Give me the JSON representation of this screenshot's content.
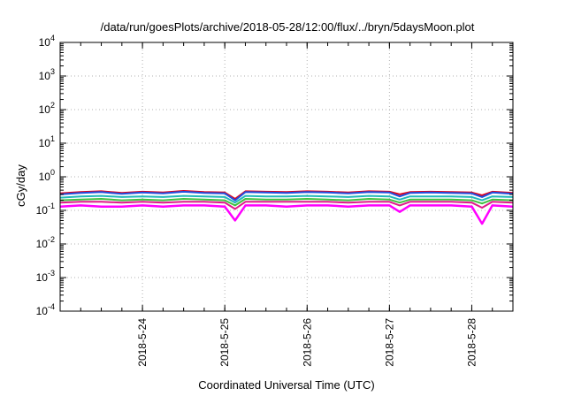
{
  "chart_data": {
    "type": "line",
    "title": "/data/run/goesPlots/archive/2018-05-28/12:00/flux/../bryn/5daysMoon.plot",
    "xlabel": "Coordinated Universal Time (UTC)",
    "ylabel": "cGy/day",
    "yscale": "log",
    "ylim": [
      0.0001,
      10000
    ],
    "y_ticks": [
      {
        "base": "10",
        "exp": "-4",
        "value": 0.0001
      },
      {
        "base": "10",
        "exp": "-3",
        "value": 0.001
      },
      {
        "base": "10",
        "exp": "-2",
        "value": 0.01
      },
      {
        "base": "10",
        "exp": "-1",
        "value": 0.1
      },
      {
        "base": "10",
        "exp": "0",
        "value": 1
      },
      {
        "base": "10",
        "exp": "1",
        "value": 10
      },
      {
        "base": "10",
        "exp": "2",
        "value": 100
      },
      {
        "base": "10",
        "exp": "3",
        "value": 1000
      },
      {
        "base": "10",
        "exp": "4",
        "value": 10000
      }
    ],
    "xlim": [
      "2018-05-23 00:00",
      "2018-05-28 12:00"
    ],
    "x_ticks": [
      {
        "label": "2018-5-24",
        "value": "2018-05-24 00:00"
      },
      {
        "label": "2018-5-25",
        "value": "2018-05-25 00:00"
      },
      {
        "label": "2018-5-26",
        "value": "2018-05-26 00:00"
      },
      {
        "label": "2018-5-27",
        "value": "2018-05-27 00:00"
      },
      {
        "label": "2018-5-28",
        "value": "2018-05-28 00:00"
      }
    ],
    "grid": true,
    "x": [
      "2018-05-23 00:00",
      "2018-05-23 06:00",
      "2018-05-23 12:00",
      "2018-05-23 18:00",
      "2018-05-24 00:00",
      "2018-05-24 06:00",
      "2018-05-24 12:00",
      "2018-05-24 18:00",
      "2018-05-25 00:00",
      "2018-05-25 03:00",
      "2018-05-25 06:00",
      "2018-05-25 12:00",
      "2018-05-25 18:00",
      "2018-05-26 00:00",
      "2018-05-26 06:00",
      "2018-05-26 12:00",
      "2018-05-26 18:00",
      "2018-05-27 00:00",
      "2018-05-27 03:00",
      "2018-05-27 06:00",
      "2018-05-27 12:00",
      "2018-05-27 18:00",
      "2018-05-28 00:00",
      "2018-05-28 03:00",
      "2018-05-28 06:00",
      "2018-05-28 12:00"
    ],
    "series": [
      {
        "color": "#e0001a",
        "values": [
          0.32,
          0.35,
          0.37,
          0.33,
          0.36,
          0.34,
          0.38,
          0.35,
          0.34,
          0.22,
          0.37,
          0.36,
          0.35,
          0.37,
          0.36,
          0.34,
          0.37,
          0.36,
          0.3,
          0.35,
          0.36,
          0.35,
          0.34,
          0.28,
          0.36,
          0.33
        ]
      },
      {
        "color": "#2050e0",
        "values": [
          0.3,
          0.33,
          0.35,
          0.31,
          0.34,
          0.32,
          0.36,
          0.33,
          0.32,
          0.2,
          0.35,
          0.34,
          0.33,
          0.35,
          0.34,
          0.32,
          0.35,
          0.34,
          0.26,
          0.33,
          0.34,
          0.33,
          0.32,
          0.25,
          0.34,
          0.31
        ]
      },
      {
        "color": "#20b8b8",
        "values": [
          0.24,
          0.26,
          0.27,
          0.25,
          0.26,
          0.25,
          0.27,
          0.26,
          0.25,
          0.17,
          0.27,
          0.26,
          0.26,
          0.27,
          0.26,
          0.25,
          0.27,
          0.26,
          0.21,
          0.26,
          0.26,
          0.26,
          0.25,
          0.2,
          0.26,
          0.25
        ]
      },
      {
        "color": "#40c040",
        "values": [
          0.2,
          0.21,
          0.22,
          0.2,
          0.21,
          0.2,
          0.22,
          0.21,
          0.2,
          0.14,
          0.22,
          0.21,
          0.21,
          0.22,
          0.21,
          0.2,
          0.22,
          0.21,
          0.17,
          0.21,
          0.21,
          0.21,
          0.2,
          0.16,
          0.21,
          0.2
        ]
      },
      {
        "color": "#e01a8a",
        "values": [
          0.17,
          0.18,
          0.18,
          0.17,
          0.18,
          0.17,
          0.18,
          0.18,
          0.17,
          0.11,
          0.18,
          0.18,
          0.18,
          0.18,
          0.18,
          0.17,
          0.18,
          0.18,
          0.14,
          0.18,
          0.18,
          0.18,
          0.17,
          0.12,
          0.18,
          0.17
        ]
      },
      {
        "color": "#ff00ff",
        "values": [
          0.13,
          0.14,
          0.13,
          0.13,
          0.14,
          0.13,
          0.14,
          0.14,
          0.13,
          0.05,
          0.14,
          0.14,
          0.13,
          0.14,
          0.14,
          0.13,
          0.14,
          0.14,
          0.09,
          0.14,
          0.14,
          0.14,
          0.13,
          0.04,
          0.14,
          0.13
        ]
      }
    ]
  }
}
